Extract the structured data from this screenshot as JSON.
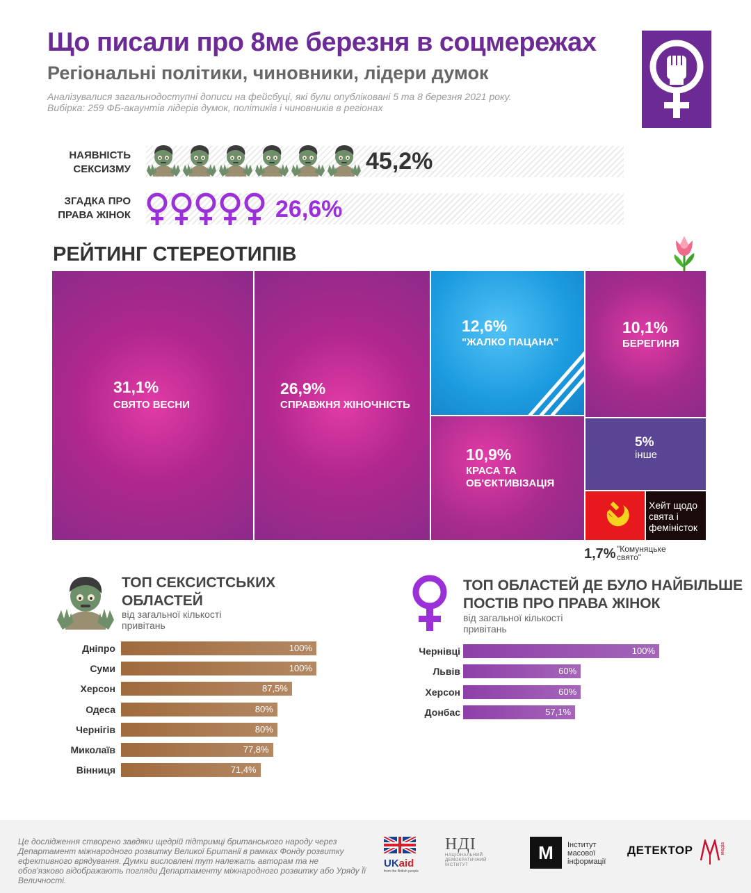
{
  "header": {
    "title": "Що писали про 8ме березня в соцмережах",
    "subtitle": "Регіональні політики, чиновники, лідери думок",
    "desc_line1": "Аналізувалися загальнодоступні дописи на фейсбуці, які були опубліковані 5 та 8 березня 2021 року.",
    "desc_line2": "Вибірка: 259 ФБ-акаунтів лідерів думок, політиків і чиновників в регіонах"
  },
  "stats": [
    {
      "label_line1": "НАЯВНІСТЬ",
      "label_line2": "СЕКСИЗМУ",
      "value": "45,2%",
      "fraction": 0.452,
      "icon": "zombie-icon",
      "icon_count": 6,
      "color": "#333333"
    },
    {
      "label_line1": "ЗГАДКА ПРО",
      "label_line2": "ПРАВА ЖІНОК",
      "value": "26,6%",
      "fraction": 0.266,
      "icon": "venus-icon",
      "icon_count": 5,
      "color": "#9b30d9"
    }
  ],
  "rating_title": "РЕЙТИНГ СТЕРЕОТИПІВ",
  "chart_data": [
    {
      "type": "treemap",
      "title": "РЕЙТИНГ СТЕРЕОТИПІВ",
      "items": [
        {
          "label": "СВЯТО ВЕСНИ",
          "value": 31.1,
          "value_label": "31,1%",
          "color": "#b0278e"
        },
        {
          "label": "СПРАВЖНЯ ЖІНОЧНІСТЬ",
          "value": 26.9,
          "value_label": "26,9%",
          "color": "#b0278e"
        },
        {
          "label": "\"ЖАЛКО ПАЦАНА\"",
          "value": 12.6,
          "value_label": "12,6%",
          "color": "#1c9be0"
        },
        {
          "label_line1": "КРАСА ТА",
          "label_line2": "ОБ'ЄКТИВІЗАЦІЯ",
          "value": 10.9,
          "value_label": "10,9%",
          "color": "#a62b8c"
        },
        {
          "label": "БЕРЕГИНЯ",
          "value": 10.1,
          "value_label": "10,1%",
          "color": "#a62b8c"
        },
        {
          "label": "інше",
          "value": 5,
          "value_label": "5%",
          "color": "#5a4494"
        },
        {
          "label_line1": "\"Комуняцьке",
          "label_line2": "свято\"",
          "value": 1.7,
          "value_label": "1,7%",
          "color": "#e8191d",
          "icon": "hammer-sickle-icon"
        },
        {
          "label_line1": "Хейт щодо",
          "label_line2": "свята і",
          "label_line3": "феміністок",
          "value": null,
          "color": "#1a0a0a"
        }
      ]
    },
    {
      "type": "bar",
      "orientation": "horizontal",
      "title_line1": "ТОП СЕКСИСТСЬКИХ",
      "title_line2": "ОБЛАСТЕЙ",
      "subtitle_line1": "від загальної кількості",
      "subtitle_line2": "привітань",
      "color": "#a06a3c",
      "xlim": [
        0,
        100
      ],
      "categories": [
        "Дніпро",
        "Суми",
        "Херсон",
        "Одеса",
        "Чернігів",
        "Миколаїв",
        "Вінниця"
      ],
      "values": [
        100,
        100,
        87.5,
        80,
        80,
        77.8,
        71.4
      ],
      "value_labels": [
        "100%",
        "100%",
        "87,5%",
        "80%",
        "80%",
        "77,8%",
        "71,4%"
      ]
    },
    {
      "type": "bar",
      "orientation": "horizontal",
      "title_line1": "ТОП ОБЛАСТЕЙ ДЕ БУЛО НАЙБІЛЬШЕ",
      "title_line2": "ПОСТІВ ПРО ПРАВА ЖІНОК",
      "subtitle_line1": "від загальної кількості",
      "subtitle_line2": "привітань",
      "color": "#8e3fa8",
      "xlim": [
        0,
        100
      ],
      "categories": [
        "Чернівці",
        "Львів",
        "Херсон",
        "Донбас"
      ],
      "values": [
        100,
        60,
        60,
        57.1
      ],
      "value_labels": [
        "100%",
        "60%",
        "60%",
        "57,1%"
      ]
    }
  ],
  "footer": {
    "text": "Це дослідження створено завдяки щедрій підтримці британського народу через Департамент міжнародного розвитку Великої Британії в рамках Фонду розвитку ефективного врядування. Думки висловлені тут належать авторам та не обов'язково відображають погляди Департаменту міжнародного розвитку або Уряду Її Величності.",
    "logos": [
      {
        "name": "UKaid",
        "text_a": "UK",
        "text_b": "aid",
        "small": "from the British people"
      },
      {
        "name": "НДІ",
        "text": "НДІ",
        "small_line1": "НАЦІОНАЛЬНИЙ",
        "small_line2": "ДЕМОКРАТИЧНИЙ",
        "small_line3": "ІНСТИТУТ"
      },
      {
        "name": "ІМІ",
        "text_line1": "Інститут",
        "text_line2": "масової",
        "text_line3": "інформації"
      },
      {
        "name": "Детектор медіа",
        "text": "ДЕТЕКТОР",
        "small": "медіа"
      }
    ]
  }
}
